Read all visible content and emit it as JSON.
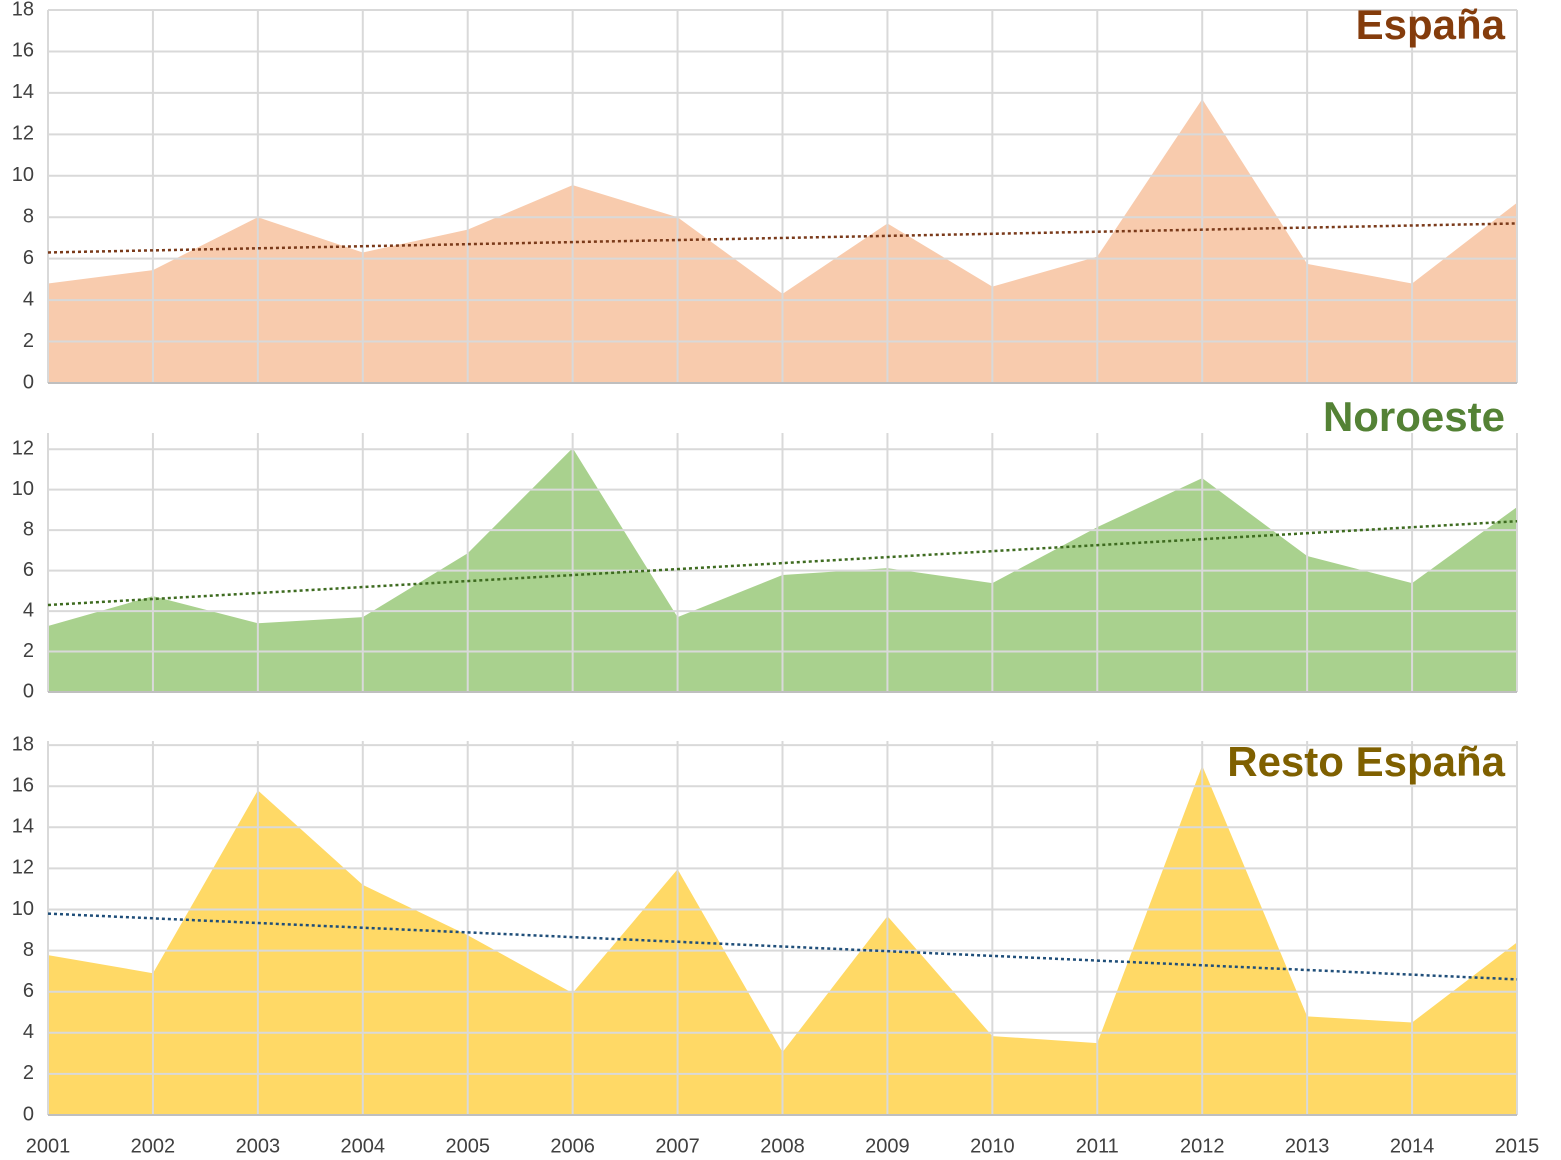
{
  "chart_data": [
    {
      "type": "area",
      "title": "España",
      "title_color": "#843c0c",
      "color": "#f8cbad",
      "values": [
        4.8,
        5.45,
        8.0,
        6.3,
        7.4,
        9.55,
        8.0,
        4.3,
        7.7,
        4.65,
        6.1,
        13.7,
        5.75,
        4.8,
        8.7
      ],
      "trendline": {
        "start": 6.3,
        "end": 7.7,
        "color": "#7a3a1a"
      },
      "ylim": [
        0,
        18
      ],
      "yticks": [
        0,
        2,
        4,
        6,
        8,
        10,
        12,
        14,
        16,
        18
      ],
      "grid": true
    },
    {
      "type": "area",
      "title": "Noroeste",
      "title_color": "#548235",
      "color": "#a9d18e",
      "values": [
        3.26,
        4.74,
        3.4,
        3.7,
        6.86,
        12.05,
        3.7,
        5.78,
        6.12,
        5.38,
        8.15,
        10.57,
        6.72,
        5.38,
        9.14
      ],
      "trendline": {
        "start": 4.3,
        "end": 8.44,
        "color": "#3e6b20"
      },
      "ylim": [
        0,
        12.8
      ],
      "yticks": [
        0,
        2,
        4,
        6,
        8,
        10,
        12
      ],
      "grid": true
    },
    {
      "type": "area",
      "title": "Resto España",
      "title_color": "#7f6000",
      "color": "#ffd966",
      "categories": [
        "2001",
        "2002",
        "2003",
        "2004",
        "2005",
        "2006",
        "2007",
        "2008",
        "2009",
        "2010",
        "2011",
        "2012",
        "2013",
        "2014",
        "2015"
      ],
      "values": [
        7.78,
        6.9,
        15.8,
        11.2,
        8.75,
        5.93,
        11.96,
        3.06,
        9.68,
        3.84,
        3.5,
        17.0,
        4.8,
        4.5,
        8.4
      ],
      "trendline": {
        "start": 9.8,
        "end": 6.6,
        "color": "#1f4e79"
      },
      "ylim": [
        0,
        18.2
      ],
      "yticks": [
        0,
        2,
        4,
        6,
        8,
        10,
        12,
        14,
        16,
        18
      ],
      "grid": true
    }
  ]
}
